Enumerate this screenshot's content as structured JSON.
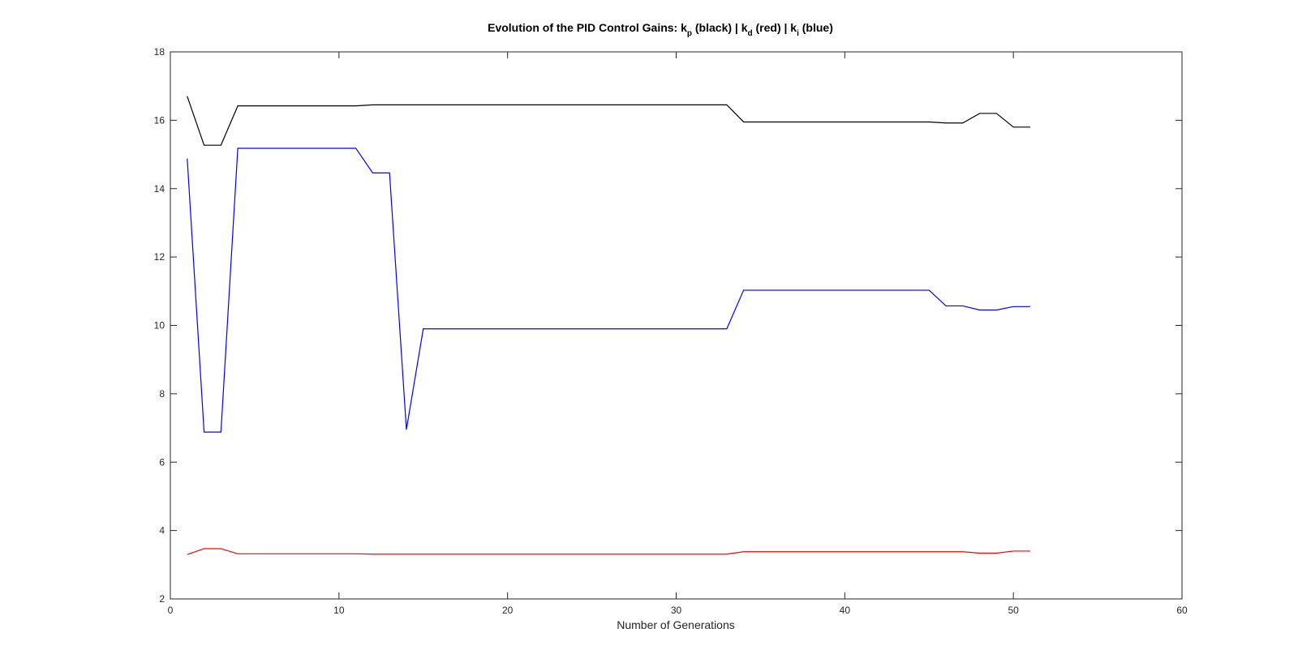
{
  "chart_data": {
    "type": "line",
    "title": {
      "prefix": "Evolution of the PID Control Gains: k",
      "sub1": "p",
      "mid1": " (black) | k",
      "sub2": "d",
      "mid2": " (red) | k",
      "sub3": "i",
      "suffix": " (blue)"
    },
    "xlabel": "Number of Generations",
    "ylabel": "",
    "xlim": [
      0,
      60
    ],
    "ylim": [
      2,
      18
    ],
    "xticks": [
      0,
      10,
      20,
      30,
      40,
      50,
      60
    ],
    "yticks": [
      2,
      4,
      6,
      8,
      10,
      12,
      14,
      16,
      18
    ],
    "grid": false,
    "box": true,
    "x": [
      1,
      2,
      3,
      4,
      5,
      6,
      7,
      8,
      9,
      10,
      11,
      12,
      13,
      14,
      15,
      16,
      17,
      18,
      19,
      20,
      21,
      22,
      23,
      24,
      25,
      26,
      27,
      28,
      29,
      30,
      31,
      32,
      33,
      34,
      35,
      36,
      37,
      38,
      39,
      40,
      41,
      42,
      43,
      44,
      45,
      46,
      47,
      48,
      49,
      50,
      51
    ],
    "series": [
      {
        "color": "#000000",
        "values": [
          16.7,
          15.27,
          15.27,
          16.42,
          16.42,
          16.42,
          16.42,
          16.42,
          16.42,
          16.42,
          16.42,
          16.45,
          16.45,
          16.45,
          16.45,
          16.45,
          16.45,
          16.45,
          16.45,
          16.45,
          16.45,
          16.45,
          16.45,
          16.45,
          16.45,
          16.45,
          16.45,
          16.45,
          16.45,
          16.45,
          16.45,
          16.45,
          16.45,
          15.95,
          15.95,
          15.95,
          15.95,
          15.95,
          15.95,
          15.95,
          15.95,
          15.95,
          15.95,
          15.95,
          15.95,
          15.92,
          15.92,
          16.2,
          16.2,
          15.8,
          15.8
        ]
      },
      {
        "color": "#ff0000",
        "values": [
          3.3,
          3.47,
          3.47,
          3.32,
          3.32,
          3.32,
          3.32,
          3.32,
          3.32,
          3.32,
          3.32,
          3.31,
          3.31,
          3.31,
          3.31,
          3.31,
          3.31,
          3.31,
          3.31,
          3.31,
          3.31,
          3.31,
          3.31,
          3.31,
          3.31,
          3.31,
          3.31,
          3.31,
          3.31,
          3.31,
          3.31,
          3.31,
          3.31,
          3.38,
          3.38,
          3.38,
          3.38,
          3.38,
          3.38,
          3.38,
          3.38,
          3.38,
          3.38,
          3.38,
          3.38,
          3.38,
          3.38,
          3.34,
          3.34,
          3.4,
          3.4
        ]
      },
      {
        "color": "#0000ff",
        "values": [
          14.88,
          6.88,
          6.88,
          15.18,
          15.18,
          15.18,
          15.18,
          15.18,
          15.18,
          15.18,
          15.18,
          14.46,
          14.46,
          6.95,
          9.9,
          9.9,
          9.9,
          9.9,
          9.9,
          9.9,
          9.9,
          9.9,
          9.9,
          9.9,
          9.9,
          9.9,
          9.9,
          9.9,
          9.9,
          9.9,
          9.9,
          9.9,
          9.9,
          11.03,
          11.03,
          11.03,
          11.03,
          11.03,
          11.03,
          11.03,
          11.03,
          11.03,
          11.03,
          11.03,
          11.03,
          10.57,
          10.57,
          10.45,
          10.45,
          10.55,
          10.55
        ]
      }
    ]
  }
}
